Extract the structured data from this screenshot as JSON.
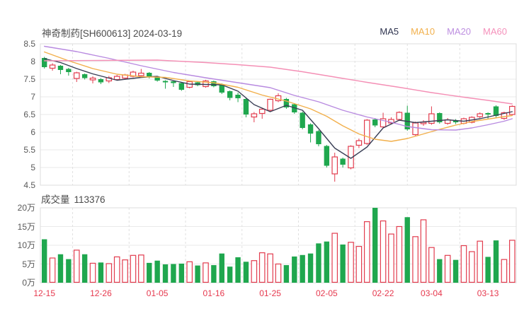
{
  "chart": {
    "title": "神奇制药[SH600613] 2024-03-19"
  },
  "volume_header": {
    "label": "成交量",
    "value": "113376"
  },
  "legend": {
    "items": [
      {
        "label": "MA5",
        "color": "#2f344f"
      },
      {
        "label": "MA10",
        "color": "#f2b04c"
      },
      {
        "label": "MA20",
        "color": "#bd8fe0"
      },
      {
        "label": "MA60",
        "color": "#f591bb"
      }
    ]
  },
  "chart_data": {
    "type": "candlestick+volume",
    "title": "神奇制药[SH600613] 2024-03-19",
    "grid": true,
    "price_axis": {
      "min": 4.5,
      "max": 8.5,
      "ticks": [
        "8.5",
        "8",
        "7.5",
        "7",
        "6.5",
        "6",
        "5.5",
        "5",
        "4.5"
      ]
    },
    "volume_axis": {
      "min": 0,
      "max": 200000,
      "ticks": [
        "20万",
        "15万",
        "10万",
        "5万",
        "0万"
      ]
    },
    "x_labels": [
      {
        "index": 0,
        "label": "12-15"
      },
      {
        "index": 7,
        "label": "12-26"
      },
      {
        "index": 14,
        "label": "01-05"
      },
      {
        "index": 21,
        "label": "01-16"
      },
      {
        "index": 28,
        "label": "01-25"
      },
      {
        "index": 35,
        "label": "02-05"
      },
      {
        "index": 42,
        "label": "02-22"
      },
      {
        "index": 48,
        "label": "03-04"
      },
      {
        "index": 55,
        "label": "03-13"
      }
    ],
    "candle_format": [
      "open",
      "close",
      "low",
      "high",
      "volume_wan",
      "bull(1=up/red,0=down/green)"
    ],
    "candles": [
      [
        8.1,
        7.84,
        7.8,
        8.13,
        11.6,
        0
      ],
      [
        7.81,
        7.9,
        7.74,
        7.95,
        6.6,
        1
      ],
      [
        7.88,
        7.76,
        7.64,
        7.9,
        7.6,
        0
      ],
      [
        7.79,
        7.7,
        7.6,
        7.82,
        6.3,
        0
      ],
      [
        7.52,
        7.68,
        7.42,
        7.71,
        8.7,
        1
      ],
      [
        7.64,
        7.53,
        7.49,
        7.66,
        7.6,
        0
      ],
      [
        7.48,
        7.53,
        7.38,
        7.58,
        5.2,
        1
      ],
      [
        7.5,
        7.41,
        7.36,
        7.53,
        5.4,
        0
      ],
      [
        7.45,
        7.54,
        7.39,
        7.59,
        5.1,
        1
      ],
      [
        7.49,
        7.58,
        7.46,
        7.62,
        6.9,
        1
      ],
      [
        7.53,
        7.62,
        7.49,
        7.65,
        6.1,
        1
      ],
      [
        7.58,
        7.7,
        7.55,
        7.74,
        7.3,
        1
      ],
      [
        7.6,
        7.67,
        7.56,
        7.79,
        7.4,
        1
      ],
      [
        7.68,
        7.56,
        7.52,
        7.7,
        5.3,
        0
      ],
      [
        7.56,
        7.46,
        7.43,
        7.58,
        5.9,
        0
      ],
      [
        7.45,
        7.41,
        7.23,
        7.47,
        4.9,
        0
      ],
      [
        7.44,
        7.39,
        7.28,
        7.46,
        5.0,
        0
      ],
      [
        7.39,
        7.2,
        7.17,
        7.42,
        5.1,
        0
      ],
      [
        7.27,
        7.43,
        7.24,
        7.46,
        5.6,
        1
      ],
      [
        7.41,
        7.33,
        7.3,
        7.44,
        4.6,
        0
      ],
      [
        7.29,
        7.45,
        7.26,
        7.48,
        5.3,
        1
      ],
      [
        7.44,
        7.3,
        7.27,
        7.46,
        4.7,
        0
      ],
      [
        7.36,
        7.12,
        7.08,
        7.38,
        7.8,
        0
      ],
      [
        7.16,
        6.97,
        6.9,
        7.18,
        4.3,
        0
      ],
      [
        7.06,
        6.96,
        6.85,
        7.12,
        6.8,
        0
      ],
      [
        6.94,
        6.5,
        6.42,
        6.96,
        5.6,
        0
      ],
      [
        6.43,
        6.52,
        6.28,
        6.57,
        5.9,
        1
      ],
      [
        6.53,
        6.65,
        6.38,
        6.68,
        8.0,
        1
      ],
      [
        6.62,
        6.93,
        6.58,
        6.95,
        7.7,
        1
      ],
      [
        6.89,
        7.03,
        6.85,
        7.1,
        5.0,
        1
      ],
      [
        6.94,
        6.7,
        6.66,
        6.97,
        4.7,
        0
      ],
      [
        6.79,
        6.56,
        6.52,
        6.82,
        7.0,
        0
      ],
      [
        6.55,
        6.12,
        6.08,
        6.58,
        7.4,
        0
      ],
      [
        6.22,
        5.96,
        5.71,
        6.25,
        7.8,
        0
      ],
      [
        6.03,
        5.66,
        5.6,
        6.06,
        10.5,
        0
      ],
      [
        5.61,
        5.05,
        5.0,
        5.64,
        11.0,
        0
      ],
      [
        4.82,
        5.3,
        4.6,
        5.42,
        13.2,
        1
      ],
      [
        5.25,
        5.08,
        5.0,
        5.28,
        10.2,
        0
      ],
      [
        4.99,
        5.6,
        4.95,
        5.63,
        10.8,
        1
      ],
      [
        5.63,
        5.76,
        5.55,
        5.82,
        9.7,
        1
      ],
      [
        5.68,
        6.34,
        5.64,
        6.37,
        16.3,
        1
      ],
      [
        6.36,
        6.19,
        6.14,
        6.4,
        20.0,
        0
      ],
      [
        6.15,
        6.38,
        6.12,
        6.55,
        16.5,
        1
      ],
      [
        6.26,
        6.36,
        6.22,
        6.42,
        13.0,
        1
      ],
      [
        6.36,
        6.56,
        6.32,
        6.59,
        15.0,
        1
      ],
      [
        6.55,
        6.08,
        6.04,
        6.75,
        17.5,
        0
      ],
      [
        5.93,
        6.26,
        5.9,
        6.3,
        12.3,
        1
      ],
      [
        6.24,
        6.28,
        6.18,
        6.34,
        16.8,
        1
      ],
      [
        6.25,
        6.52,
        6.21,
        6.73,
        9.4,
        1
      ],
      [
        6.54,
        6.28,
        6.24,
        6.56,
        6.3,
        0
      ],
      [
        6.25,
        6.35,
        6.21,
        6.4,
        7.3,
        1
      ],
      [
        6.33,
        6.28,
        6.23,
        6.37,
        6.1,
        0
      ],
      [
        6.25,
        6.38,
        6.22,
        6.41,
        9.9,
        1
      ],
      [
        6.28,
        6.42,
        6.25,
        6.45,
        8.3,
        1
      ],
      [
        6.44,
        6.52,
        6.4,
        6.56,
        11.1,
        1
      ],
      [
        6.54,
        6.5,
        6.36,
        6.56,
        6.9,
        0
      ],
      [
        6.73,
        6.46,
        6.42,
        6.76,
        11.3,
        0
      ],
      [
        6.39,
        6.55,
        6.35,
        6.58,
        6.2,
        1
      ],
      [
        6.5,
        6.73,
        6.46,
        6.76,
        11.34,
        1
      ]
    ],
    "ma_lines": {
      "MA5": {
        "color": "#3a3f56",
        "points": [
          [
            0,
            8.08
          ],
          [
            2,
            7.97
          ],
          [
            4,
            7.8
          ],
          [
            6,
            7.65
          ],
          [
            9,
            7.47
          ],
          [
            12,
            7.55
          ],
          [
            14,
            7.58
          ],
          [
            16,
            7.46
          ],
          [
            18,
            7.36
          ],
          [
            20,
            7.35
          ],
          [
            22,
            7.34
          ],
          [
            24,
            7.16
          ],
          [
            26,
            6.78
          ],
          [
            28,
            6.58
          ],
          [
            30,
            6.76
          ],
          [
            32,
            6.62
          ],
          [
            34,
            6.1
          ],
          [
            36,
            5.55
          ],
          [
            38,
            5.26
          ],
          [
            40,
            5.58
          ],
          [
            42,
            6.12
          ],
          [
            44,
            6.34
          ],
          [
            46,
            6.27
          ],
          [
            48,
            6.31
          ],
          [
            50,
            6.35
          ],
          [
            52,
            6.31
          ],
          [
            54,
            6.38
          ],
          [
            56,
            6.48
          ],
          [
            58,
            6.58
          ]
        ]
      },
      "MA10": {
        "color": "#f2b04c",
        "points": [
          [
            0,
            8.27
          ],
          [
            3,
            8.02
          ],
          [
            6,
            7.8
          ],
          [
            9,
            7.64
          ],
          [
            12,
            7.57
          ],
          [
            15,
            7.55
          ],
          [
            18,
            7.45
          ],
          [
            21,
            7.4
          ],
          [
            24,
            7.27
          ],
          [
            27,
            7.05
          ],
          [
            30,
            6.88
          ],
          [
            33,
            6.66
          ],
          [
            35,
            6.45
          ],
          [
            37,
            6.18
          ],
          [
            39,
            5.95
          ],
          [
            41,
            5.8
          ],
          [
            43,
            5.74
          ],
          [
            45,
            5.82
          ],
          [
            47,
            5.95
          ],
          [
            49,
            6.08
          ],
          [
            51,
            6.2
          ],
          [
            53,
            6.3
          ],
          [
            55,
            6.37
          ],
          [
            57,
            6.44
          ],
          [
            58,
            6.47
          ]
        ]
      },
      "MA20": {
        "color": "#b88ae0",
        "points": [
          [
            0,
            8.43
          ],
          [
            4,
            8.28
          ],
          [
            8,
            8.09
          ],
          [
            12,
            7.88
          ],
          [
            16,
            7.69
          ],
          [
            20,
            7.54
          ],
          [
            24,
            7.4
          ],
          [
            28,
            7.26
          ],
          [
            31,
            7.04
          ],
          [
            34,
            6.86
          ],
          [
            37,
            6.62
          ],
          [
            40,
            6.43
          ],
          [
            43,
            6.28
          ],
          [
            45,
            6.16
          ],
          [
            48,
            6.07
          ],
          [
            51,
            6.06
          ],
          [
            53,
            6.12
          ],
          [
            55,
            6.21
          ],
          [
            57,
            6.31
          ],
          [
            58,
            6.38
          ]
        ]
      },
      "MA60": {
        "color": "#f48fb5",
        "points": [
          [
            0,
            8.02
          ],
          [
            7,
            8.03
          ],
          [
            14,
            8.04
          ],
          [
            20,
            7.97
          ],
          [
            24,
            7.91
          ],
          [
            28,
            7.84
          ],
          [
            32,
            7.71
          ],
          [
            36,
            7.56
          ],
          [
            40,
            7.41
          ],
          [
            44,
            7.27
          ],
          [
            48,
            7.12
          ],
          [
            52,
            6.99
          ],
          [
            55,
            6.9
          ],
          [
            58,
            6.8
          ]
        ]
      }
    },
    "colors": {
      "up": "#e23c4e",
      "down": "#1fa74e",
      "grid": "#e9e9e9",
      "grid_dashed": "#e0e0e0",
      "border": "#dcdcdc",
      "axis_text": "#595959",
      "x_label": "#e6394e",
      "title_text": "#4c4c4c"
    }
  }
}
